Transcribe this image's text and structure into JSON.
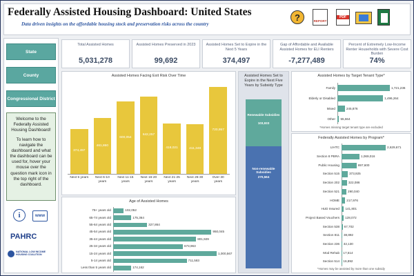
{
  "header": {
    "title": "Federally Assisted Housing Dashboard: United States",
    "subtitle": "Data driven insights on the affordable housing stock and preservation risks across the country",
    "icon_labels": [
      "REPORT",
      "PDF"
    ]
  },
  "sidebar": {
    "buttons": [
      "State",
      "County",
      "Congressional District"
    ],
    "welcome": [
      "Welcome to the Federally Assisted Housing Dashboard!",
      "To learn how to navigate the dashboard and what the dashboard can be used for, hover your mouse over the question mark icon in the top right of the dashboard."
    ],
    "web_icon": "www",
    "logos": [
      "PAHRC",
      "NATIONAL LOW INCOME HOUSING COALITION"
    ]
  },
  "kpis": [
    {
      "label": "Total Assisted Homes",
      "value": "5,031,278"
    },
    {
      "label": "Assisted Homes Preserved in 2023",
      "value": "99,692"
    },
    {
      "label": "Assisted Homes Set to Expire in the Next 5 Years",
      "value": "374,497"
    },
    {
      "label": "Gap of Affordable and Available Assisted Homes for ELI Renters",
      "value": "-7,277,489"
    },
    {
      "label": "Percent of Extremely Low-Income Renter Households with Severe Cost Burden",
      "value": "74%"
    }
  ],
  "chart_data": [
    {
      "type": "bar",
      "title": "Assisted Homes Facing Exit Risk Over Time",
      "color": "#e8c73c",
      "categories": [
        "Next 5 years",
        "Next 6-10 years",
        "Next 11-15 years",
        "Next 16-20 years",
        "Next 21-25 years",
        "Next 26-30 years",
        "Over 30 years"
      ],
      "values": [
        374497,
        461860,
        600054,
        642257,
        418021,
        411348,
        720957
      ],
      "value_labels": [
        "374,497",
        "461,860",
        "600,054",
        "642,257",
        "418,021",
        "411,348",
        "720,957"
      ]
    },
    {
      "type": "hbar",
      "title": "Age of Assisted Homes",
      "color": "#5fa99c",
      "categories": [
        "75+ years old",
        "65-74 years old",
        "55-64 years old",
        "45-54 years old",
        "35-44 years old",
        "25-34 years old",
        "15-24 years old",
        "5-14 years old",
        "Less than 5 years old"
      ],
      "values": [
        102052,
        175364,
        327864,
        950045,
        801929,
        673963,
        1000567,
        711583,
        174162
      ],
      "value_labels": [
        "102,052",
        "175,364",
        "327,864",
        "950,045",
        "801,929",
        "673,963",
        "1,000,567",
        "711,583",
        "174,162"
      ]
    },
    {
      "type": "stacked_bar",
      "title": "Assisted Homes Set to Expire in the Next Five Years by Subsidy Type",
      "series": [
        {
          "name": "Non-renewable Subsidies",
          "color": "#4a72b0",
          "values": [
            270564
          ],
          "value_labels": [
            "270,564"
          ]
        },
        {
          "name": "Renewable Subsidies",
          "color": "#5fa99c",
          "values": [
            103933
          ],
          "value_labels": [
            "103,933"
          ]
        }
      ]
    },
    {
      "type": "hbar",
      "title": "Assisted Homes by Target Tenant Type*",
      "color": "#5fa99c",
      "categories": [
        "Family",
        "Elderly or Disabled",
        "Mixed",
        "Other"
      ],
      "values": [
        1721236,
        1496264,
        245876,
        55664
      ],
      "value_labels": [
        "1,721,236",
        "1,496,264",
        "245,876",
        "55,664"
      ],
      "footnote": "*Homes missing target tenant type are excluded"
    },
    {
      "type": "hbar",
      "title": "Federally Assisted Homes by Program*",
      "color": "#5fa99c",
      "categories": [
        "LIHTC",
        "Section 8 PBRA",
        "Public Housing",
        "Section 515",
        "Section 202",
        "Section 521",
        "HOME",
        "HUD Insured",
        "Project Based Vouchers",
        "Section 538",
        "Section 811",
        "Section 236",
        "Mod Rehab",
        "Section 514"
      ],
      "values": [
        2629671,
        1069016,
        897600,
        373925,
        322086,
        290040,
        217976,
        141801,
        128072,
        67702,
        38892,
        32130,
        17514,
        16892
      ],
      "value_labels": [
        "2,629,671",
        "1,069,016",
        "897,600",
        "373,925",
        "322,086",
        "290,040",
        "217,976",
        "141,801",
        "128,072",
        "67,702",
        "38,892",
        "32,130",
        "17,514",
        "16,892"
      ],
      "footnote": "*Homes may be assisted by more than one subsidy"
    }
  ]
}
